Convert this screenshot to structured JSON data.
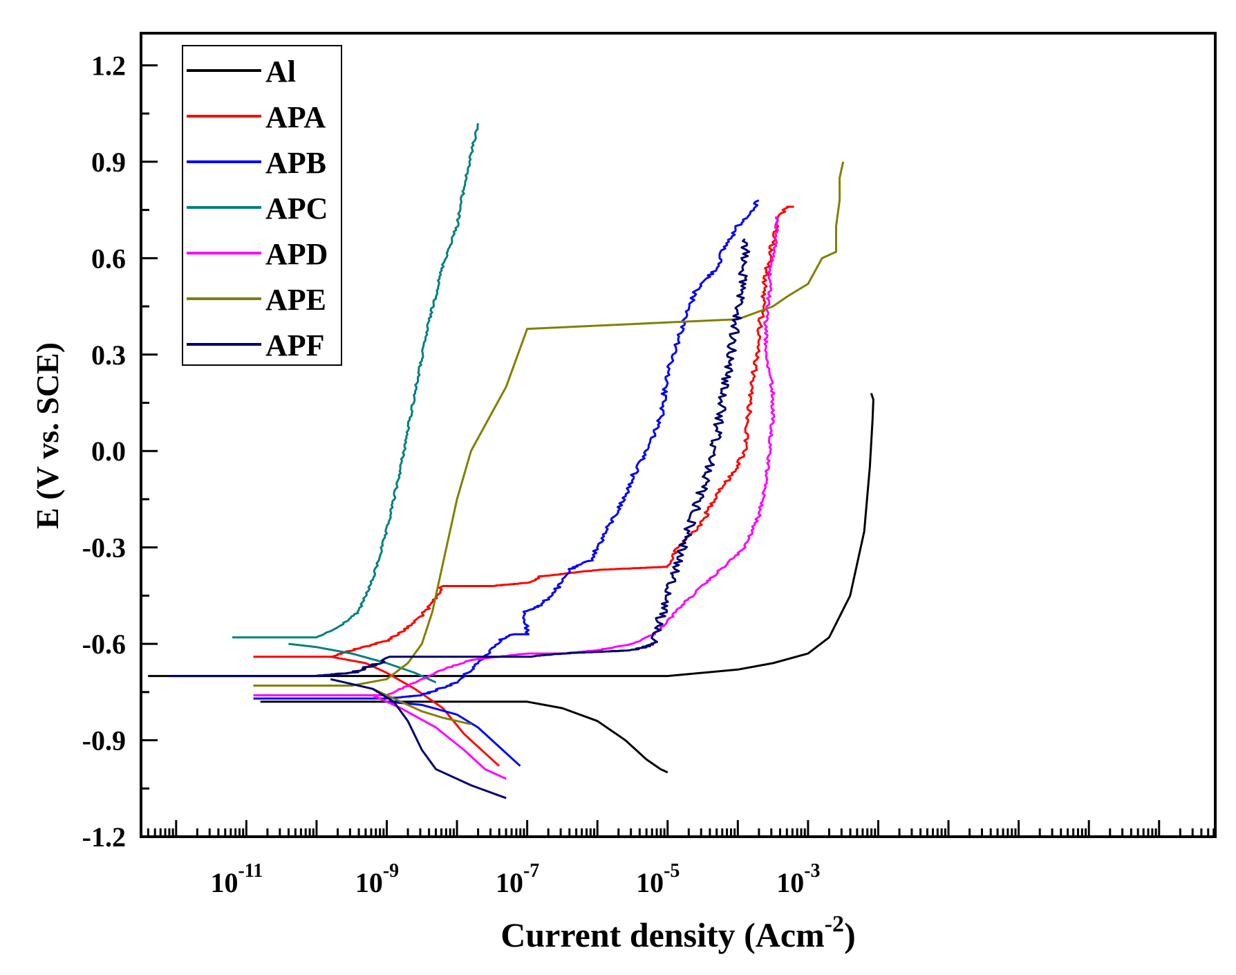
{
  "chart_data": {
    "type": "line",
    "title": "",
    "xlabel": "Current density (Acm",
    "xlabel_superscript": "-2",
    "xlabel_close": ")",
    "ylabel": "E (V vs. SCE)",
    "xscale": "log",
    "xlim_log10": [
      -12.5,
      2.8
    ],
    "ylim": [
      -1.2,
      1.3
    ],
    "xticks": [
      {
        "base": "10",
        "exp": "-11",
        "log": -11
      },
      {
        "base": "10",
        "exp": "-9",
        "log": -9
      },
      {
        "base": "10",
        "exp": "-7",
        "log": -7
      },
      {
        "base": "10",
        "exp": "-5",
        "log": -5
      },
      {
        "base": "10",
        "exp": "-3",
        "log": -3
      }
    ],
    "yticks": [
      {
        "label": "1.2",
        "value": 1.2
      },
      {
        "label": "0.9",
        "value": 0.9
      },
      {
        "label": "0.6",
        "value": 0.6
      },
      {
        "label": "0.3",
        "value": 0.3
      },
      {
        "label": "0.0",
        "value": 0.0
      },
      {
        "label": "-0.3",
        "value": -0.3
      },
      {
        "label": "-0.6",
        "value": -0.6
      },
      {
        "label": "-0.9",
        "value": -0.9
      },
      {
        "label": "-1.2",
        "value": -1.2
      }
    ],
    "legend_position": "top-left",
    "series": [
      {
        "name": "Al",
        "color": "#000000",
        "noise": 0,
        "anodic": [
          [
            -12.4,
            -0.7
          ],
          [
            -11,
            -0.7
          ],
          [
            -9,
            -0.7
          ],
          [
            -7,
            -0.7
          ],
          [
            -5,
            -0.7
          ],
          [
            -4,
            -0.68
          ],
          [
            -3.5,
            -0.66
          ],
          [
            -3,
            -0.63
          ],
          [
            -2.7,
            -0.58
          ],
          [
            -2.4,
            -0.45
          ],
          [
            -2.2,
            -0.25
          ],
          [
            -2.12,
            -0.05
          ],
          [
            -2.08,
            0.1
          ],
          [
            -2.07,
            0.16
          ],
          [
            -2.1,
            0.18
          ]
        ],
        "cathodic": [
          [
            -10.8,
            -0.78
          ],
          [
            -9,
            -0.78
          ],
          [
            -8,
            -0.78
          ],
          [
            -7,
            -0.78
          ],
          [
            -6.5,
            -0.8
          ],
          [
            -6,
            -0.84
          ],
          [
            -5.6,
            -0.9
          ],
          [
            -5.3,
            -0.96
          ],
          [
            -5.1,
            -0.99
          ],
          [
            -5,
            -1.0
          ]
        ]
      },
      {
        "name": "APA",
        "color": "#ff0000",
        "noise": 0.012,
        "anodic": [
          [
            -10.9,
            -0.64
          ],
          [
            -10,
            -0.64
          ],
          [
            -9.8,
            -0.64
          ],
          [
            -9.5,
            -0.62
          ],
          [
            -9,
            -0.59
          ],
          [
            -8.7,
            -0.55
          ],
          [
            -8.4,
            -0.49
          ],
          [
            -8.2,
            -0.42
          ],
          [
            -7.5,
            -0.42
          ],
          [
            -7,
            -0.41
          ],
          [
            -6.8,
            -0.39
          ],
          [
            -6,
            -0.37
          ],
          [
            -5,
            -0.36
          ],
          [
            -4.85,
            -0.3
          ],
          [
            -4.5,
            -0.22
          ],
          [
            -4.3,
            -0.13
          ],
          [
            -4.1,
            -0.08
          ],
          [
            -3.9,
            0.0
          ],
          [
            -3.8,
            0.2
          ],
          [
            -3.7,
            0.35
          ],
          [
            -3.65,
            0.45
          ],
          [
            -3.6,
            0.55
          ],
          [
            -3.5,
            0.65
          ],
          [
            -3.4,
            0.73
          ],
          [
            -3.3,
            0.76
          ],
          [
            -3.2,
            0.76
          ]
        ],
        "cathodic": [
          [
            -9.8,
            -0.64
          ],
          [
            -9.3,
            -0.66
          ],
          [
            -9,
            -0.69
          ],
          [
            -8.6,
            -0.74
          ],
          [
            -8.2,
            -0.8
          ],
          [
            -7.9,
            -0.88
          ],
          [
            -7.6,
            -0.94
          ],
          [
            -7.4,
            -0.98
          ]
        ]
      },
      {
        "name": "APB",
        "color": "#0000ff",
        "noise": 0.012,
        "anodic": [
          [
            -10.9,
            -0.77
          ],
          [
            -9,
            -0.77
          ],
          [
            -8.5,
            -0.76
          ],
          [
            -8,
            -0.72
          ],
          [
            -7.7,
            -0.66
          ],
          [
            -7.4,
            -0.59
          ],
          [
            -7.2,
            -0.57
          ],
          [
            -7,
            -0.57
          ],
          [
            -7.05,
            -0.5
          ],
          [
            -6.8,
            -0.48
          ],
          [
            -6.5,
            -0.41
          ],
          [
            -6.4,
            -0.37
          ],
          [
            -6.1,
            -0.34
          ],
          [
            -6.0,
            -0.3
          ],
          [
            -5.8,
            -0.22
          ],
          [
            -5.6,
            -0.14
          ],
          [
            -5.5,
            -0.08
          ],
          [
            -5.3,
            0.0
          ],
          [
            -5.1,
            0.1
          ],
          [
            -5,
            0.25
          ],
          [
            -4.8,
            0.38
          ],
          [
            -4.7,
            0.44
          ],
          [
            -4.6,
            0.5
          ],
          [
            -4.3,
            0.57
          ],
          [
            -4.2,
            0.63
          ],
          [
            -4.0,
            0.7
          ],
          [
            -3.8,
            0.75
          ],
          [
            -3.7,
            0.78
          ]
        ],
        "cathodic": [
          [
            -9,
            -0.78
          ],
          [
            -8.5,
            -0.79
          ],
          [
            -8,
            -0.82
          ],
          [
            -7.7,
            -0.86
          ],
          [
            -7.4,
            -0.92
          ],
          [
            -7.1,
            -0.98
          ]
        ]
      },
      {
        "name": "APC",
        "color": "#008080",
        "noise": 0.006,
        "anodic": [
          [
            -11.2,
            -0.58
          ],
          [
            -10.5,
            -0.58
          ],
          [
            -10,
            -0.58
          ],
          [
            -9.7,
            -0.55
          ],
          [
            -9.4,
            -0.5
          ],
          [
            -9.2,
            -0.4
          ],
          [
            -9.0,
            -0.25
          ],
          [
            -8.8,
            -0.05
          ],
          [
            -8.6,
            0.18
          ],
          [
            -8.4,
            0.4
          ],
          [
            -8.2,
            0.58
          ],
          [
            -8.0,
            0.7
          ],
          [
            -7.9,
            0.82
          ],
          [
            -7.8,
            0.92
          ],
          [
            -7.7,
            1.02
          ]
        ],
        "cathodic": [
          [
            -10.4,
            -0.6
          ],
          [
            -10,
            -0.61
          ],
          [
            -9.5,
            -0.63
          ],
          [
            -9,
            -0.66
          ],
          [
            -8.6,
            -0.69
          ],
          [
            -8.3,
            -0.72
          ]
        ]
      },
      {
        "name": "APD",
        "color": "#ff00ff",
        "noise": 0.008,
        "anodic": [
          [
            -10.9,
            -0.76
          ],
          [
            -9,
            -0.76
          ],
          [
            -8.6,
            -0.72
          ],
          [
            -8.2,
            -0.68
          ],
          [
            -7.8,
            -0.65
          ],
          [
            -7.4,
            -0.64
          ],
          [
            -7,
            -0.63
          ],
          [
            -6.5,
            -0.63
          ],
          [
            -6,
            -0.62
          ],
          [
            -5.5,
            -0.6
          ],
          [
            -5.2,
            -0.57
          ],
          [
            -5,
            -0.53
          ],
          [
            -4.8,
            -0.48
          ],
          [
            -4.6,
            -0.44
          ],
          [
            -4.4,
            -0.4
          ],
          [
            -4.2,
            -0.36
          ],
          [
            -3.9,
            -0.3
          ],
          [
            -3.7,
            -0.2
          ],
          [
            -3.6,
            -0.1
          ],
          [
            -3.55,
            0.0
          ],
          [
            -3.5,
            0.1
          ],
          [
            -3.5,
            0.18
          ],
          [
            -3.55,
            0.25
          ],
          [
            -3.6,
            0.32
          ],
          [
            -3.6,
            0.4
          ],
          [
            -3.55,
            0.5
          ],
          [
            -3.55,
            0.55
          ],
          [
            -3.5,
            0.6
          ],
          [
            -3.45,
            0.65
          ],
          [
            -3.45,
            0.7
          ],
          [
            -3.45,
            0.73
          ]
        ],
        "cathodic": [
          [
            -9.2,
            -0.76
          ],
          [
            -8.8,
            -0.8
          ],
          [
            -8.3,
            -0.86
          ],
          [
            -7.9,
            -0.93
          ],
          [
            -7.6,
            -0.99
          ],
          [
            -7.3,
            -1.02
          ]
        ]
      },
      {
        "name": "APE",
        "color": "#808000",
        "noise": 0,
        "anodic": [
          [
            -10.9,
            -0.73
          ],
          [
            -10,
            -0.73
          ],
          [
            -9.5,
            -0.73
          ],
          [
            -9.0,
            -0.71
          ],
          [
            -8.7,
            -0.66
          ],
          [
            -8.5,
            -0.6
          ],
          [
            -8.35,
            -0.5
          ],
          [
            -8.2,
            -0.35
          ],
          [
            -8.0,
            -0.15
          ],
          [
            -7.8,
            0.0
          ],
          [
            -7.5,
            0.12
          ],
          [
            -7.3,
            0.2
          ],
          [
            -7.1,
            0.32
          ],
          [
            -7.0,
            0.38
          ],
          [
            -5,
            0.4
          ],
          [
            -4,
            0.41
          ],
          [
            -3.5,
            0.45
          ],
          [
            -3.3,
            0.48
          ],
          [
            -3,
            0.52
          ],
          [
            -2.8,
            0.6
          ],
          [
            -2.6,
            0.62
          ],
          [
            -2.6,
            0.7
          ],
          [
            -2.55,
            0.78
          ],
          [
            -2.55,
            0.85
          ],
          [
            -2.5,
            0.9
          ]
        ],
        "cathodic": [
          [
            -9.2,
            -0.74
          ],
          [
            -8.8,
            -0.78
          ],
          [
            -8.5,
            -0.81
          ],
          [
            -8.2,
            -0.83
          ],
          [
            -7.8,
            -0.85
          ]
        ]
      },
      {
        "name": "APF",
        "color": "#00006e",
        "noise": 0.022,
        "anodic": [
          [
            -12.1,
            -0.7
          ],
          [
            -10,
            -0.7
          ],
          [
            -9.5,
            -0.69
          ],
          [
            -9.1,
            -0.66
          ],
          [
            -9,
            -0.64
          ],
          [
            -7,
            -0.64
          ],
          [
            -6.5,
            -0.63
          ],
          [
            -5.5,
            -0.62
          ],
          [
            -5.2,
            -0.6
          ],
          [
            -5.1,
            -0.52
          ],
          [
            -5,
            -0.45
          ],
          [
            -4.9,
            -0.38
          ],
          [
            -4.75,
            -0.28
          ],
          [
            -4.6,
            -0.18
          ],
          [
            -4.45,
            -0.08
          ],
          [
            -4.3,
            0.05
          ],
          [
            -4.2,
            0.18
          ],
          [
            -4.1,
            0.3
          ],
          [
            -4.0,
            0.42
          ],
          [
            -3.95,
            0.52
          ],
          [
            -3.9,
            0.6
          ],
          [
            -3.9,
            0.66
          ]
        ],
        "cathodic": [
          [
            -9.8,
            -0.71
          ],
          [
            -9.2,
            -0.74
          ],
          [
            -8.9,
            -0.78
          ],
          [
            -8.7,
            -0.84
          ],
          [
            -8.5,
            -0.93
          ],
          [
            -8.3,
            -0.99
          ],
          [
            -7.8,
            -1.04
          ],
          [
            -7.3,
            -1.08
          ]
        ]
      }
    ]
  }
}
